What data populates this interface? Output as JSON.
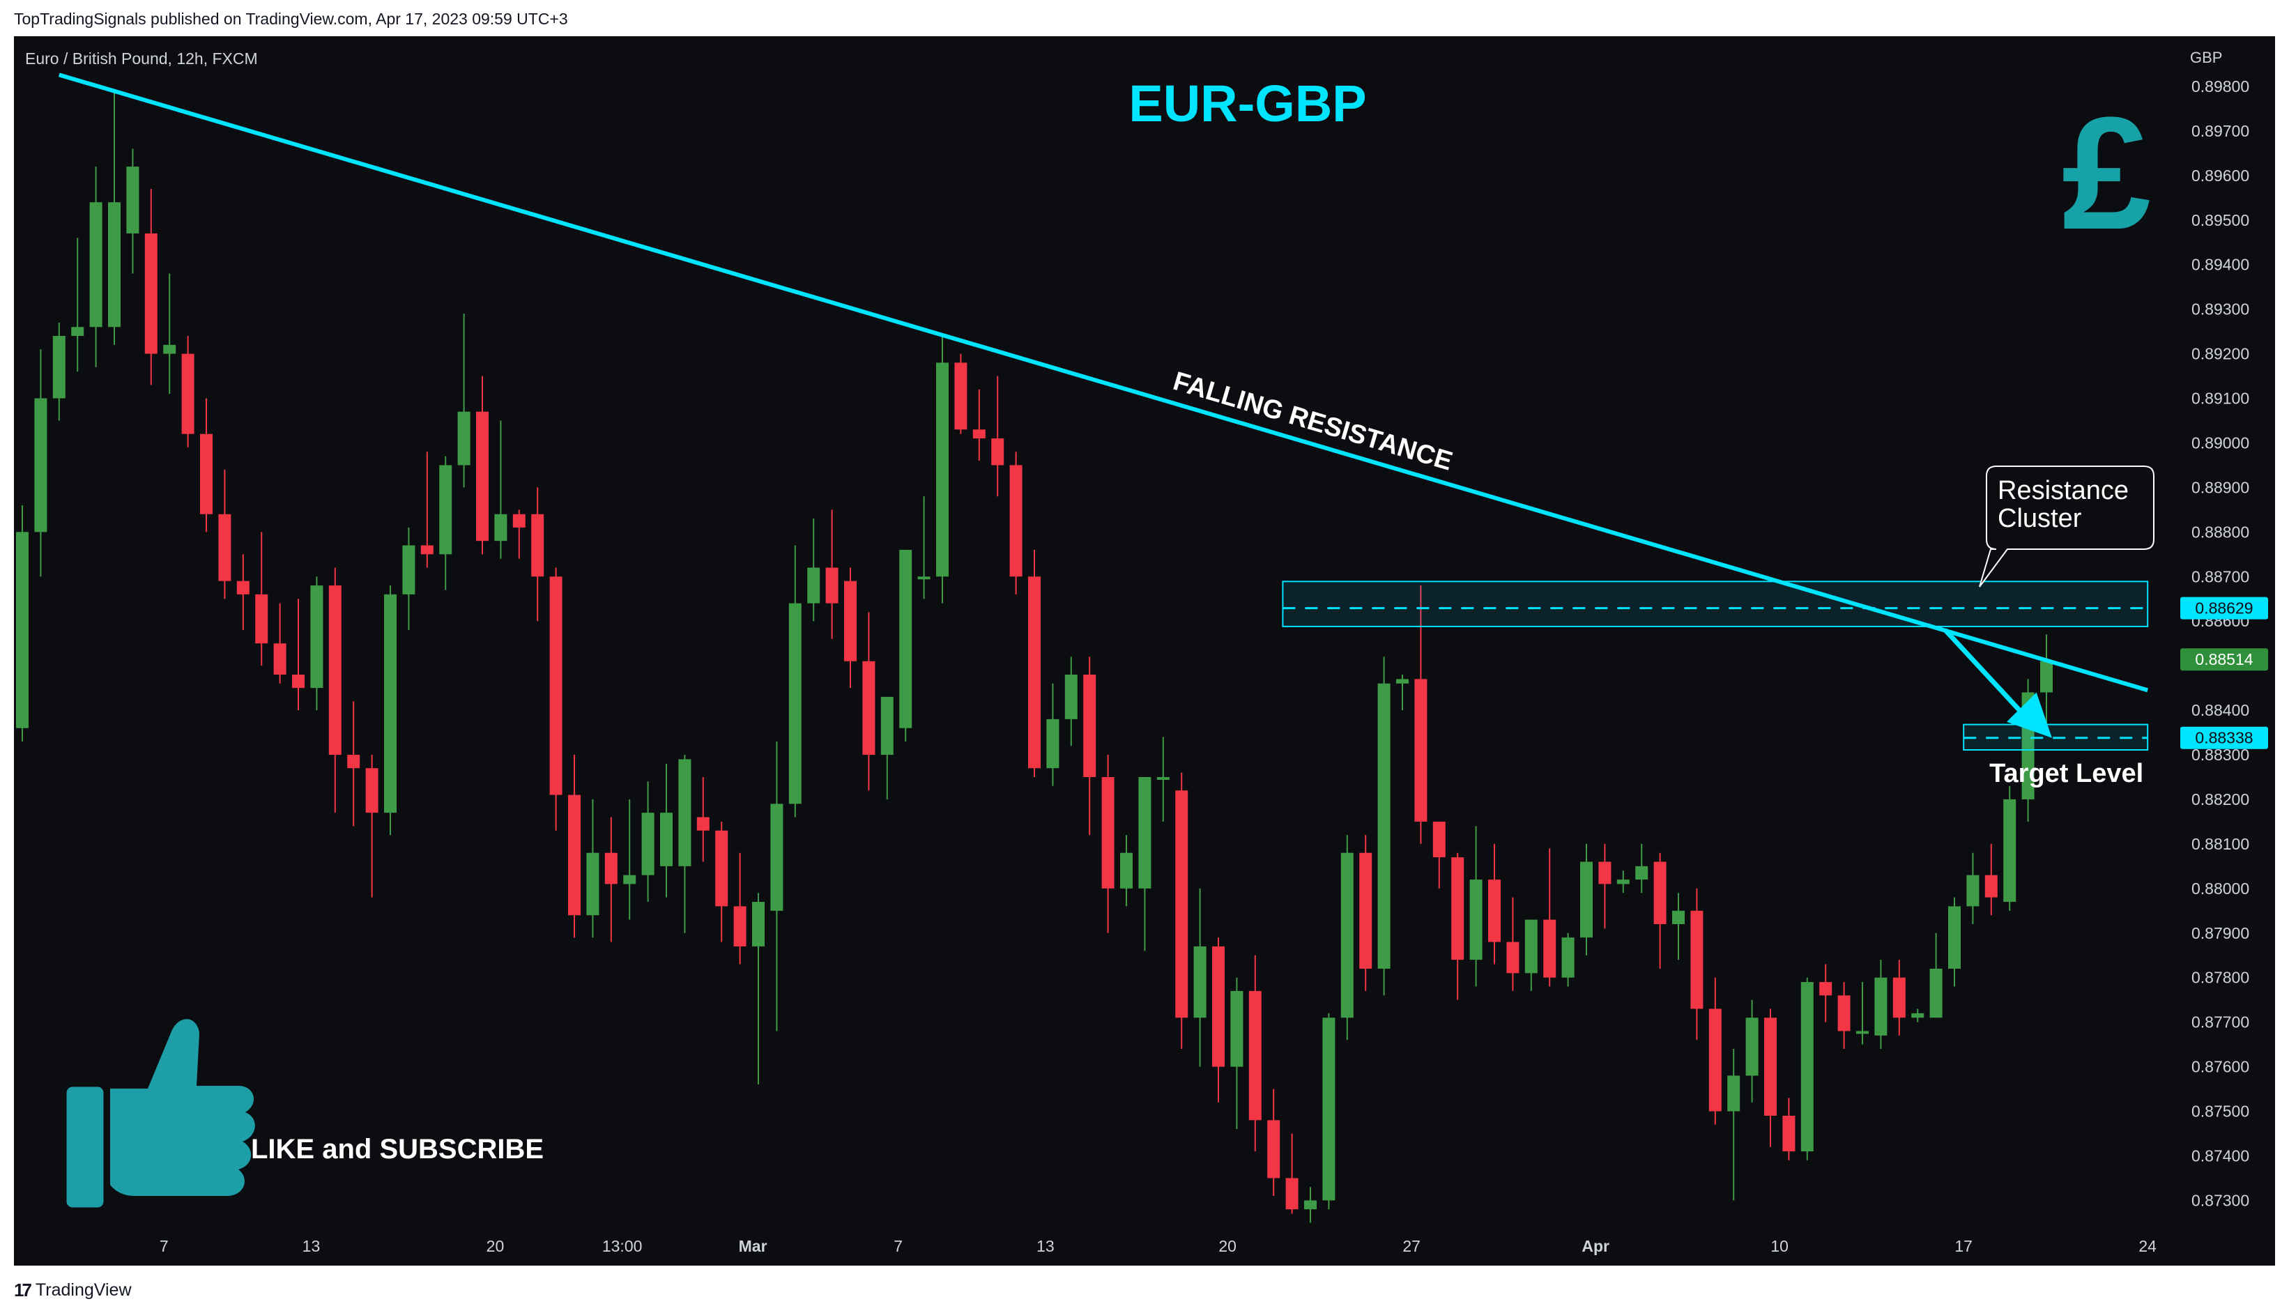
{
  "header": {
    "publish_line": "TopTradingSignals published on TradingView.com, Apr 17, 2023 09:59 UTC+3"
  },
  "footer": {
    "brand": "TradingView",
    "logo_glyph": "17"
  },
  "symbol_line": "Euro / British Pound, 12h, FXCM",
  "chart_title": "EUR-GBP",
  "currency_label": "GBP",
  "currency_glyph": "£",
  "annotations": {
    "trendline_label": "FALLING RESISTANCE",
    "callout_line1": "Resistance",
    "callout_line2": "Cluster",
    "target_label": "Target Level",
    "like_subscribe": "LIKE and SUBSCRIBE"
  },
  "price_tags": [
    {
      "value": "0.88629",
      "bg": "#00e5ff",
      "fg": "#0c0d11"
    },
    {
      "value": "0.88514",
      "bg": "#2f8f3a",
      "fg": "#ffffff"
    },
    {
      "value": "0.88338",
      "bg": "#00e5ff",
      "fg": "#0c0d11"
    }
  ],
  "colors": {
    "up": "#3f9c46",
    "down": "#f23645",
    "accent": "#00e5ff",
    "thumb": "#1e9ea6",
    "background": "#0c0d11"
  },
  "chart_data": {
    "type": "candlestick",
    "timeframe": "12h",
    "y_axis_ticks": [
      "0.87300",
      "0.87400",
      "0.87500",
      "0.87600",
      "0.87700",
      "0.87800",
      "0.87900",
      "0.88000",
      "0.88100",
      "0.88200",
      "0.88300",
      "0.88400",
      "0.88600",
      "0.88700",
      "0.88800",
      "0.88900",
      "0.89000",
      "0.89100",
      "0.89200",
      "0.89300",
      "0.89400",
      "0.89500",
      "0.89600",
      "0.89700",
      "0.89800"
    ],
    "y_range": [
      0.8726,
      0.8985
    ],
    "x_axis_ticks": [
      {
        "label": "7",
        "index": 7.7
      },
      {
        "label": "13",
        "index": 15.7
      },
      {
        "label": "20",
        "index": 25.7
      },
      {
        "label": "13:00",
        "index": 32.6
      },
      {
        "label": "Mar",
        "index": 39.7
      },
      {
        "label": "7",
        "index": 47.6
      },
      {
        "label": "13",
        "index": 55.6
      },
      {
        "label": "20",
        "index": 65.5
      },
      {
        "label": "27",
        "index": 75.5
      },
      {
        "label": "Apr",
        "index": 85.5
      },
      {
        "label": "10",
        "index": 95.5
      },
      {
        "label": "17",
        "index": 105.5
      },
      {
        "label": "24",
        "index": 115.5
      }
    ],
    "candles": [
      {
        "o": 0.8836,
        "h": 0.8886,
        "l": 0.8833,
        "c": 0.888
      },
      {
        "o": 0.888,
        "h": 0.8921,
        "l": 0.887,
        "c": 0.891
      },
      {
        "o": 0.891,
        "h": 0.8927,
        "l": 0.8905,
        "c": 0.8924
      },
      {
        "o": 0.8924,
        "h": 0.8946,
        "l": 0.8916,
        "c": 0.8926
      },
      {
        "o": 0.8926,
        "h": 0.8962,
        "l": 0.8917,
        "c": 0.8954
      },
      {
        "o": 0.8926,
        "h": 0.8979,
        "l": 0.8922,
        "c": 0.8954
      },
      {
        "o": 0.8947,
        "h": 0.8966,
        "l": 0.8938,
        "c": 0.8962
      },
      {
        "o": 0.8947,
        "h": 0.8957,
        "l": 0.8913,
        "c": 0.892
      },
      {
        "o": 0.892,
        "h": 0.8938,
        "l": 0.8911,
        "c": 0.8922
      },
      {
        "o": 0.892,
        "h": 0.8924,
        "l": 0.8899,
        "c": 0.8902
      },
      {
        "o": 0.8902,
        "h": 0.891,
        "l": 0.888,
        "c": 0.8884
      },
      {
        "o": 0.8884,
        "h": 0.8894,
        "l": 0.8865,
        "c": 0.8869
      },
      {
        "o": 0.8869,
        "h": 0.8875,
        "l": 0.8858,
        "c": 0.8866
      },
      {
        "o": 0.8866,
        "h": 0.888,
        "l": 0.885,
        "c": 0.8855
      },
      {
        "o": 0.8855,
        "h": 0.8864,
        "l": 0.8846,
        "c": 0.8848
      },
      {
        "o": 0.8848,
        "h": 0.8865,
        "l": 0.884,
        "c": 0.8845
      },
      {
        "o": 0.8845,
        "h": 0.887,
        "l": 0.884,
        "c": 0.8868
      },
      {
        "o": 0.8868,
        "h": 0.8872,
        "l": 0.8817,
        "c": 0.883
      },
      {
        "o": 0.883,
        "h": 0.8842,
        "l": 0.8814,
        "c": 0.8827
      },
      {
        "o": 0.8827,
        "h": 0.883,
        "l": 0.8798,
        "c": 0.8817
      },
      {
        "o": 0.8817,
        "h": 0.8868,
        "l": 0.8812,
        "c": 0.8866
      },
      {
        "o": 0.8866,
        "h": 0.8881,
        "l": 0.8858,
        "c": 0.8877
      },
      {
        "o": 0.8877,
        "h": 0.8898,
        "l": 0.8872,
        "c": 0.8875
      },
      {
        "o": 0.8875,
        "h": 0.8897,
        "l": 0.8867,
        "c": 0.8895
      },
      {
        "o": 0.8895,
        "h": 0.8929,
        "l": 0.889,
        "c": 0.8907
      },
      {
        "o": 0.8907,
        "h": 0.8915,
        "l": 0.8875,
        "c": 0.8878
      },
      {
        "o": 0.8878,
        "h": 0.8905,
        "l": 0.8874,
        "c": 0.8884
      },
      {
        "o": 0.8884,
        "h": 0.8885,
        "l": 0.8874,
        "c": 0.8881
      },
      {
        "o": 0.8884,
        "h": 0.889,
        "l": 0.886,
        "c": 0.887
      },
      {
        "o": 0.887,
        "h": 0.8872,
        "l": 0.8813,
        "c": 0.8821
      },
      {
        "o": 0.8821,
        "h": 0.883,
        "l": 0.8789,
        "c": 0.8794
      },
      {
        "o": 0.8794,
        "h": 0.882,
        "l": 0.8789,
        "c": 0.8808
      },
      {
        "o": 0.8808,
        "h": 0.8816,
        "l": 0.8788,
        "c": 0.8801
      },
      {
        "o": 0.8801,
        "h": 0.882,
        "l": 0.8793,
        "c": 0.8803
      },
      {
        "o": 0.8803,
        "h": 0.8824,
        "l": 0.8797,
        "c": 0.8817
      },
      {
        "o": 0.8805,
        "h": 0.8828,
        "l": 0.8798,
        "c": 0.8817
      },
      {
        "o": 0.8805,
        "h": 0.883,
        "l": 0.879,
        "c": 0.8829
      },
      {
        "o": 0.8816,
        "h": 0.8825,
        "l": 0.8806,
        "c": 0.8813
      },
      {
        "o": 0.8813,
        "h": 0.8815,
        "l": 0.8788,
        "c": 0.8796
      },
      {
        "o": 0.8796,
        "h": 0.8808,
        "l": 0.8783,
        "c": 0.8787
      },
      {
        "o": 0.8787,
        "h": 0.8799,
        "l": 0.8756,
        "c": 0.8797
      },
      {
        "o": 0.8795,
        "h": 0.8833,
        "l": 0.8768,
        "c": 0.8819
      },
      {
        "o": 0.8819,
        "h": 0.8877,
        "l": 0.8816,
        "c": 0.8864
      },
      {
        "o": 0.8864,
        "h": 0.8883,
        "l": 0.886,
        "c": 0.8872
      },
      {
        "o": 0.8872,
        "h": 0.8885,
        "l": 0.8856,
        "c": 0.8864
      },
      {
        "o": 0.8869,
        "h": 0.8872,
        "l": 0.8845,
        "c": 0.8851
      },
      {
        "o": 0.8851,
        "h": 0.8862,
        "l": 0.8822,
        "c": 0.883
      },
      {
        "o": 0.883,
        "h": 0.8842,
        "l": 0.882,
        "c": 0.8843
      },
      {
        "o": 0.8836,
        "h": 0.8876,
        "l": 0.8833,
        "c": 0.8876
      },
      {
        "o": 0.887,
        "h": 0.8888,
        "l": 0.8865,
        "c": 0.887
      },
      {
        "o": 0.887,
        "h": 0.8924,
        "l": 0.8864,
        "c": 0.8918
      },
      {
        "o": 0.8918,
        "h": 0.892,
        "l": 0.8902,
        "c": 0.8903
      },
      {
        "o": 0.8903,
        "h": 0.8912,
        "l": 0.8896,
        "c": 0.8901
      },
      {
        "o": 0.8901,
        "h": 0.8915,
        "l": 0.8888,
        "c": 0.8895
      },
      {
        "o": 0.8895,
        "h": 0.8898,
        "l": 0.8866,
        "c": 0.887
      },
      {
        "o": 0.887,
        "h": 0.8876,
        "l": 0.8825,
        "c": 0.8827
      },
      {
        "o": 0.8827,
        "h": 0.8846,
        "l": 0.8823,
        "c": 0.8838
      },
      {
        "o": 0.8838,
        "h": 0.8852,
        "l": 0.8832,
        "c": 0.8848
      },
      {
        "o": 0.8848,
        "h": 0.8852,
        "l": 0.8812,
        "c": 0.8825
      },
      {
        "o": 0.8825,
        "h": 0.883,
        "l": 0.879,
        "c": 0.88
      },
      {
        "o": 0.88,
        "h": 0.8812,
        "l": 0.8796,
        "c": 0.8808
      },
      {
        "o": 0.88,
        "h": 0.8825,
        "l": 0.8786,
        "c": 0.8825
      },
      {
        "o": 0.8825,
        "h": 0.8834,
        "l": 0.8815,
        "c": 0.8825
      },
      {
        "o": 0.8822,
        "h": 0.8826,
        "l": 0.8764,
        "c": 0.8771
      },
      {
        "o": 0.8771,
        "h": 0.88,
        "l": 0.876,
        "c": 0.8787
      },
      {
        "o": 0.8787,
        "h": 0.8789,
        "l": 0.8752,
        "c": 0.876
      },
      {
        "o": 0.876,
        "h": 0.878,
        "l": 0.8746,
        "c": 0.8777
      },
      {
        "o": 0.8777,
        "h": 0.8785,
        "l": 0.8741,
        "c": 0.8748
      },
      {
        "o": 0.8748,
        "h": 0.8755,
        "l": 0.8731,
        "c": 0.8735
      },
      {
        "o": 0.8735,
        "h": 0.8745,
        "l": 0.8727,
        "c": 0.8728
      },
      {
        "o": 0.8728,
        "h": 0.8733,
        "l": 0.8725,
        "c": 0.873
      },
      {
        "o": 0.873,
        "h": 0.8772,
        "l": 0.8728,
        "c": 0.8771
      },
      {
        "o": 0.8771,
        "h": 0.8812,
        "l": 0.8766,
        "c": 0.8808
      },
      {
        "o": 0.8808,
        "h": 0.8812,
        "l": 0.8777,
        "c": 0.8782
      },
      {
        "o": 0.8782,
        "h": 0.8852,
        "l": 0.8776,
        "c": 0.8846
      },
      {
        "o": 0.8846,
        "h": 0.8848,
        "l": 0.884,
        "c": 0.8847
      },
      {
        "o": 0.8847,
        "h": 0.8868,
        "l": 0.881,
        "c": 0.8815
      },
      {
        "o": 0.8815,
        "h": 0.8815,
        "l": 0.88,
        "c": 0.8807
      },
      {
        "o": 0.8807,
        "h": 0.8808,
        "l": 0.8775,
        "c": 0.8784
      },
      {
        "o": 0.8784,
        "h": 0.8814,
        "l": 0.8778,
        "c": 0.8802
      },
      {
        "o": 0.8802,
        "h": 0.881,
        "l": 0.8783,
        "c": 0.8788
      },
      {
        "o": 0.8788,
        "h": 0.8798,
        "l": 0.8777,
        "c": 0.8781
      },
      {
        "o": 0.8781,
        "h": 0.8793,
        "l": 0.8777,
        "c": 0.8793
      },
      {
        "o": 0.8793,
        "h": 0.8809,
        "l": 0.8778,
        "c": 0.878
      },
      {
        "o": 0.878,
        "h": 0.879,
        "l": 0.8778,
        "c": 0.8789
      },
      {
        "o": 0.8789,
        "h": 0.881,
        "l": 0.8785,
        "c": 0.8806
      },
      {
        "o": 0.8806,
        "h": 0.881,
        "l": 0.8791,
        "c": 0.8801
      },
      {
        "o": 0.8801,
        "h": 0.8804,
        "l": 0.8799,
        "c": 0.8802
      },
      {
        "o": 0.8802,
        "h": 0.881,
        "l": 0.8799,
        "c": 0.8805
      },
      {
        "o": 0.8806,
        "h": 0.8808,
        "l": 0.8782,
        "c": 0.8792
      },
      {
        "o": 0.8792,
        "h": 0.8799,
        "l": 0.8784,
        "c": 0.8795
      },
      {
        "o": 0.8795,
        "h": 0.88,
        "l": 0.8766,
        "c": 0.8773
      },
      {
        "o": 0.8773,
        "h": 0.878,
        "l": 0.8747,
        "c": 0.875
      },
      {
        "o": 0.875,
        "h": 0.8764,
        "l": 0.873,
        "c": 0.8758
      },
      {
        "o": 0.8758,
        "h": 0.8775,
        "l": 0.8752,
        "c": 0.8771
      },
      {
        "o": 0.8771,
        "h": 0.8773,
        "l": 0.8742,
        "c": 0.8749
      },
      {
        "o": 0.8749,
        "h": 0.8753,
        "l": 0.8739,
        "c": 0.8741
      },
      {
        "o": 0.8741,
        "h": 0.878,
        "l": 0.8739,
        "c": 0.8779
      },
      {
        "o": 0.8779,
        "h": 0.8783,
        "l": 0.877,
        "c": 0.8776
      },
      {
        "o": 0.8776,
        "h": 0.8779,
        "l": 0.8764,
        "c": 0.8768
      },
      {
        "o": 0.8768,
        "h": 0.8779,
        "l": 0.8765,
        "c": 0.8768
      },
      {
        "o": 0.8767,
        "h": 0.8784,
        "l": 0.8764,
        "c": 0.878
      },
      {
        "o": 0.878,
        "h": 0.8784,
        "l": 0.8767,
        "c": 0.8771
      },
      {
        "o": 0.8771,
        "h": 0.8773,
        "l": 0.877,
        "c": 0.8772
      },
      {
        "o": 0.8771,
        "h": 0.879,
        "l": 0.8771,
        "c": 0.8782
      },
      {
        "o": 0.8782,
        "h": 0.8798,
        "l": 0.8778,
        "c": 0.8796
      },
      {
        "o": 0.8796,
        "h": 0.8808,
        "l": 0.8792,
        "c": 0.8803
      },
      {
        "o": 0.8803,
        "h": 0.881,
        "l": 0.8794,
        "c": 0.8798
      },
      {
        "o": 0.8797,
        "h": 0.8823,
        "l": 0.8795,
        "c": 0.882
      },
      {
        "o": 0.882,
        "h": 0.8847,
        "l": 0.8815,
        "c": 0.8844
      },
      {
        "o": 0.8844,
        "h": 0.8857,
        "l": 0.8835,
        "c": 0.8851
      }
    ],
    "trendline": {
      "label": "FALLING RESISTANCE",
      "from": {
        "index": 2.0,
        "price": 0.89826
      },
      "to": {
        "index": 115.5,
        "price": 0.88445
      }
    },
    "resistance_zone": {
      "index_from": 68.5,
      "index_to": 115.5,
      "price_low": 0.88588,
      "price_high": 0.88689,
      "level": 0.88629
    },
    "target_zone": {
      "index_from": 105.5,
      "index_to": 115.5,
      "price_low": 0.88311,
      "price_high": 0.88368,
      "level": 0.88338
    },
    "last_price": 0.88514
  }
}
